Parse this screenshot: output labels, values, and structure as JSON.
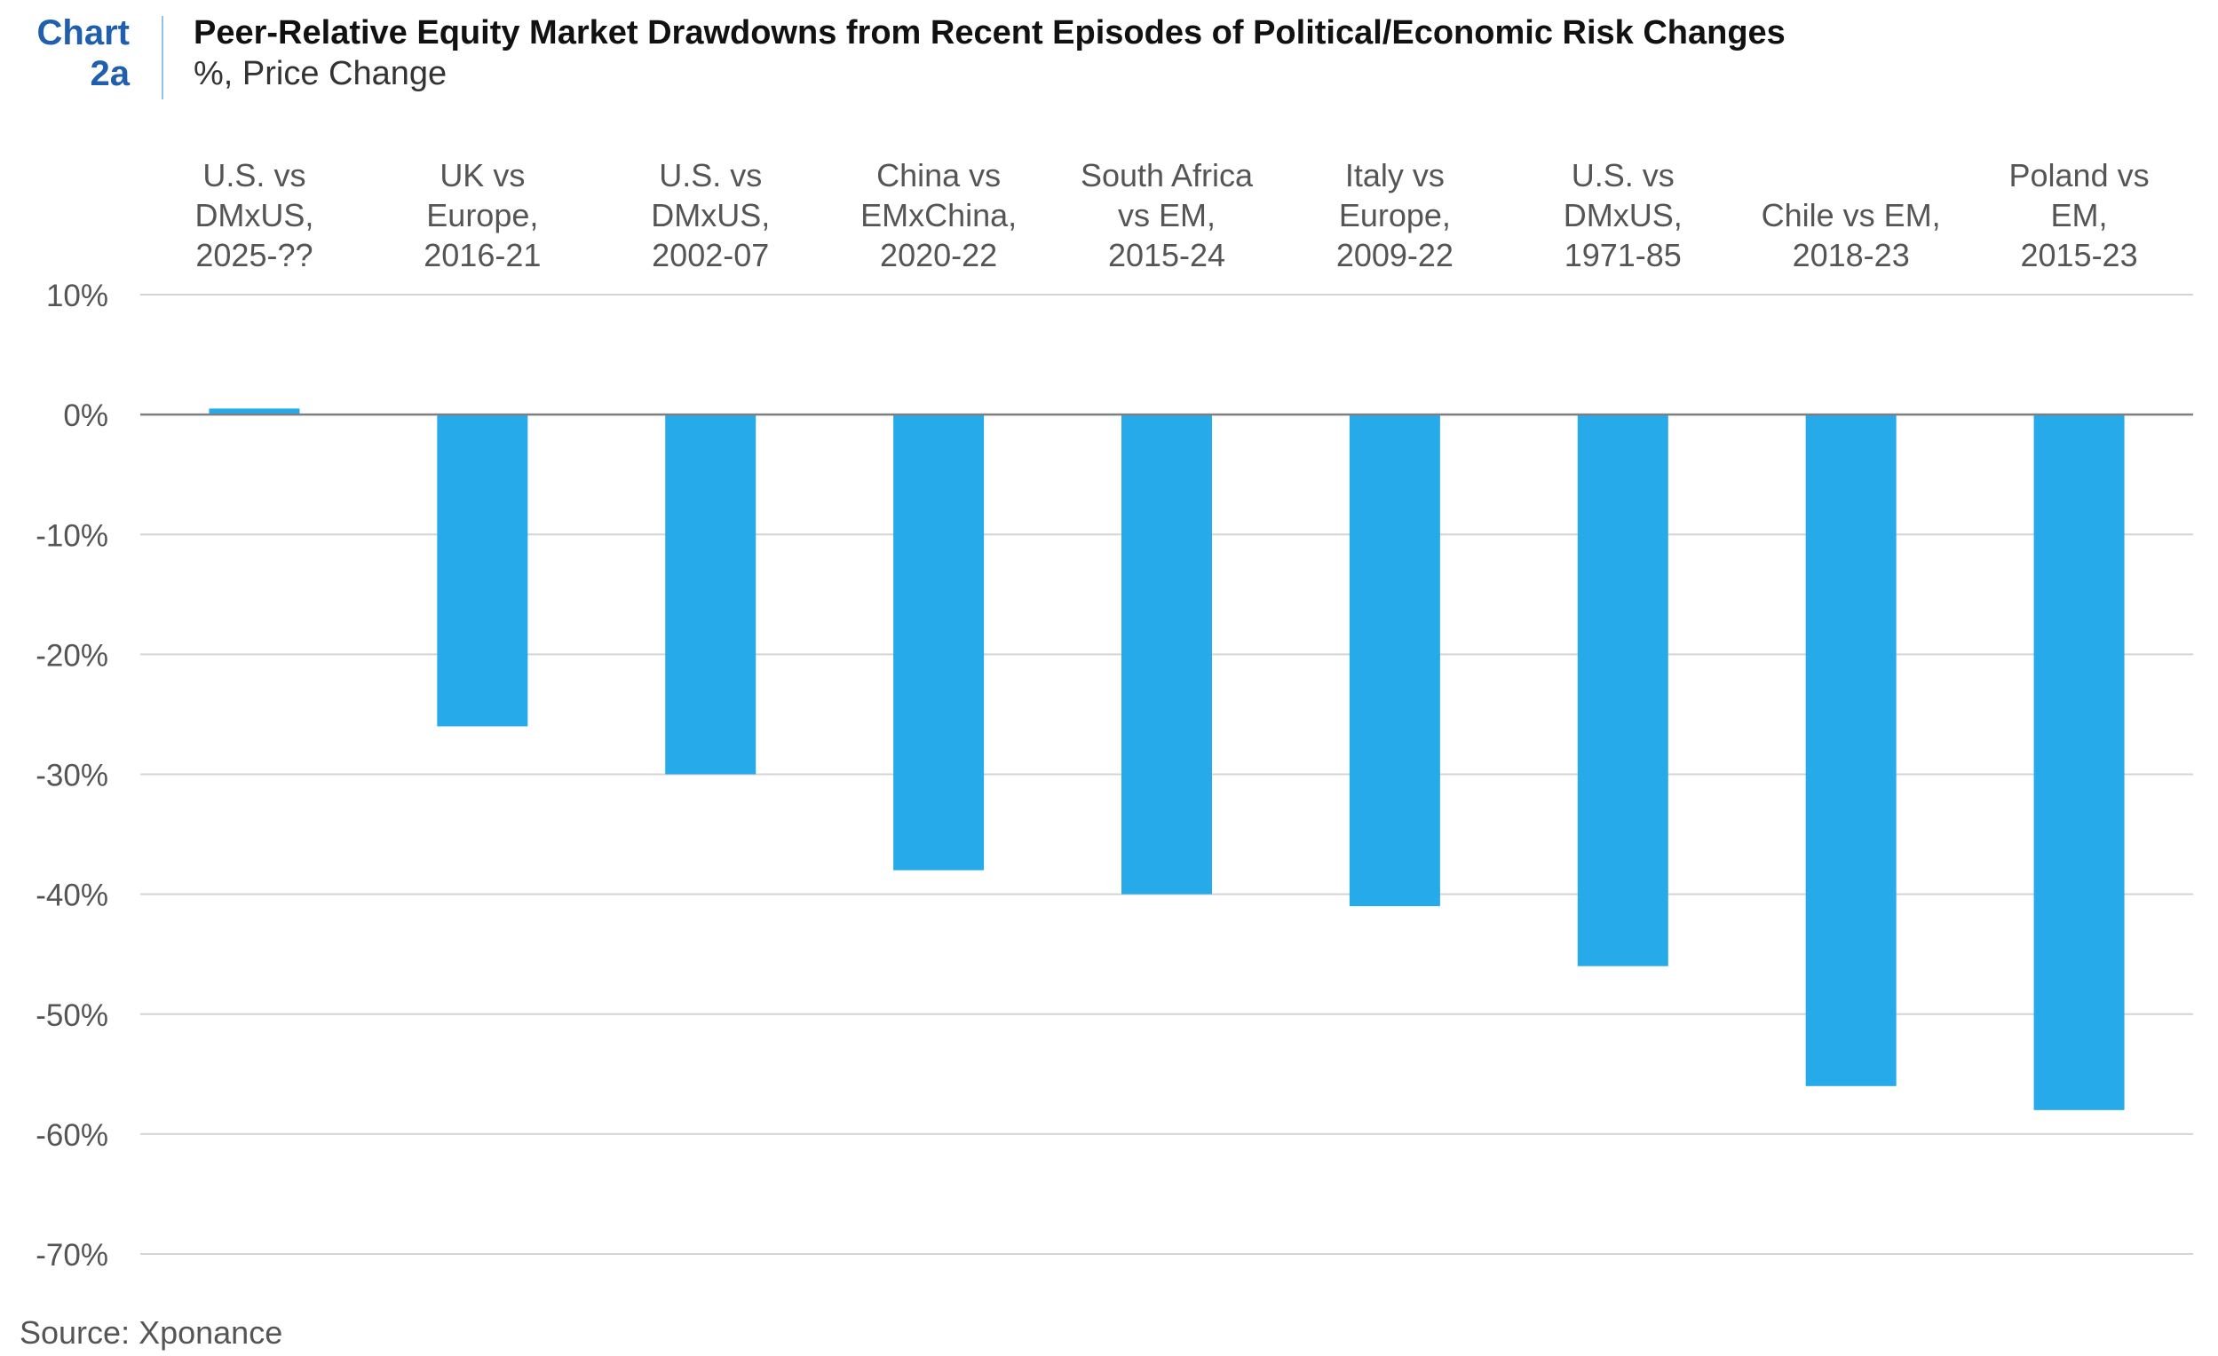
{
  "header": {
    "chart_label_line1": "Chart",
    "chart_label_line2": "2a",
    "title": "Peer-Relative Equity Market Drawdowns from Recent Episodes of Political/Economic Risk Changes",
    "subtitle": "%, Price Change"
  },
  "source": "Source: Xponance",
  "colors": {
    "bar": "#27aaea",
    "grid": "#d4d4d4",
    "zero_line": "#7f7f7f",
    "label_accent": "#1f5fae"
  },
  "chart_data": {
    "type": "bar",
    "title": "Peer-Relative Equity Market Drawdowns from Recent Episodes of Political/Economic Risk Changes",
    "subtitle": "%, Price Change",
    "categories": [
      [
        "U.S. vs",
        "DMxUS,",
        "2025-??"
      ],
      [
        "UK vs",
        "Europe,",
        "2016-21"
      ],
      [
        "U.S. vs",
        "DMxUS,",
        "2002-07"
      ],
      [
        "China vs",
        "EMxChina,",
        "2020-22"
      ],
      [
        "South Africa",
        "vs EM,",
        "2015-24"
      ],
      [
        "Italy vs",
        "Europe,",
        "2009-22"
      ],
      [
        "U.S. vs",
        "DMxUS,",
        "1971-85"
      ],
      [
        "Chile vs EM,",
        "2018-23"
      ],
      [
        "Poland vs",
        "EM,",
        "2015-23"
      ]
    ],
    "values": [
      0.5,
      -26,
      -30,
      -38,
      -40,
      -41,
      -46,
      -56,
      -58
    ],
    "ylim": [
      -70,
      10
    ],
    "yticks": [
      10,
      0,
      -10,
      -20,
      -30,
      -40,
      -50,
      -60,
      -70
    ],
    "ytick_labels": [
      "10%",
      "0%",
      "-10%",
      "-20%",
      "-30%",
      "-40%",
      "-50%",
      "-60%",
      "-70%"
    ],
    "xlabel": "",
    "ylabel": "",
    "grid": true,
    "x_axis_position": "top",
    "legend": "none"
  }
}
